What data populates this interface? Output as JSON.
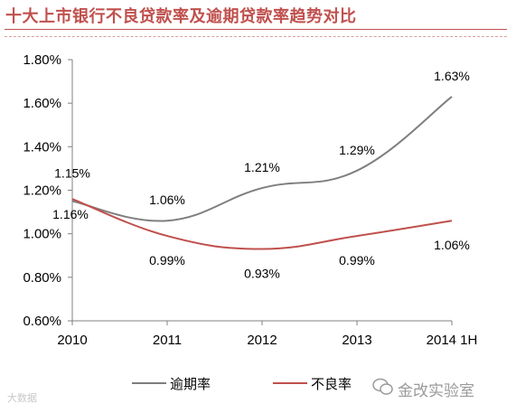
{
  "title": "十大上市银行不良贷款率及逾期贷款率趋势对比",
  "watermark_left": "大数据",
  "watermark_right": "金改实验室",
  "chart_data": {
    "type": "line",
    "title": "十大上市银行不良贷款率及逾期贷款率趋势对比",
    "categories": [
      "2010",
      "2011",
      "2012",
      "2013",
      "2014 1H"
    ],
    "y_ticks": [
      "0.60%",
      "0.80%",
      "1.00%",
      "1.20%",
      "1.40%",
      "1.60%",
      "1.80%"
    ],
    "ylim": [
      0.6,
      1.8
    ],
    "grid": false,
    "legend_position": "bottom",
    "series": [
      {
        "name": "逾期率",
        "color": "#7f7f7f",
        "values": [
          1.15,
          1.06,
          1.21,
          1.29,
          1.63
        ],
        "labels": [
          "1.15%",
          "1.06%",
          "1.21%",
          "1.29%",
          "1.63%"
        ]
      },
      {
        "name": "不良率",
        "color": "#c0504d",
        "values": [
          1.16,
          0.99,
          0.93,
          0.99,
          1.06
        ],
        "labels": [
          "1.16%",
          "0.99%",
          "0.93%",
          "0.99%",
          "1.06%"
        ]
      }
    ]
  }
}
